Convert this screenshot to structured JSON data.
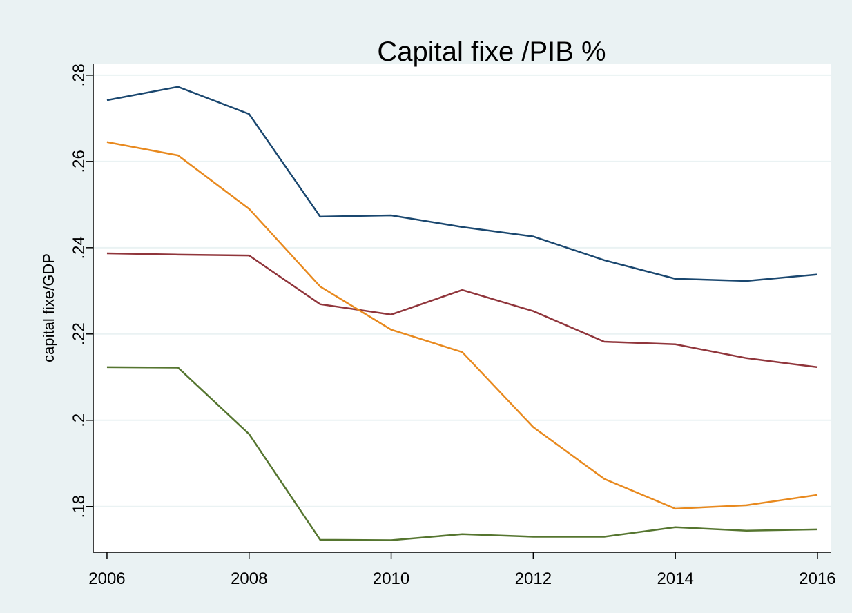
{
  "chart_data": {
    "type": "line",
    "title": "Capital fixe /PIB %",
    "y_label": "capital fixe/GDP",
    "x": [
      2006,
      2007,
      2008,
      2009,
      2010,
      2011,
      2012,
      2013,
      2014,
      2015,
      2016
    ],
    "series": [
      {
        "color": "#1a476f",
        "values": [
          0.2742,
          0.2773,
          0.271,
          0.2472,
          0.2475,
          0.2448,
          0.2426,
          0.2371,
          0.2328,
          0.2323,
          0.2338
        ]
      },
      {
        "color": "#90353b",
        "values": [
          0.2387,
          0.2384,
          0.2382,
          0.2269,
          0.2245,
          0.2302,
          0.2253,
          0.2182,
          0.2176,
          0.2144,
          0.2123
        ]
      },
      {
        "color": "#e8891e",
        "values": [
          0.2645,
          0.2614,
          0.249,
          0.231,
          0.221,
          0.2158,
          0.1984,
          0.1864,
          0.1795,
          0.1803,
          0.1827
        ]
      },
      {
        "color": "#55752f",
        "values": [
          0.2123,
          0.2122,
          0.1968,
          0.1723,
          0.1722,
          0.1736,
          0.173,
          0.173,
          0.1752,
          0.1744,
          0.1747
        ]
      }
    ],
    "xlim": [
      2005.806,
      2016.185
    ],
    "xticks": [
      2006,
      2008,
      2010,
      2012,
      2014,
      2016
    ],
    "ylim": [
      0.1694,
      0.2827
    ],
    "yticks": [
      {
        "value": 0.18,
        "label": ".18"
      },
      {
        "value": 0.2,
        "label": ".2"
      },
      {
        "value": 0.22,
        "label": ".22"
      },
      {
        "value": 0.24,
        "label": ".24"
      },
      {
        "value": 0.26,
        "label": ".26"
      },
      {
        "value": 0.28,
        "label": ".28"
      }
    ],
    "grid": true
  }
}
